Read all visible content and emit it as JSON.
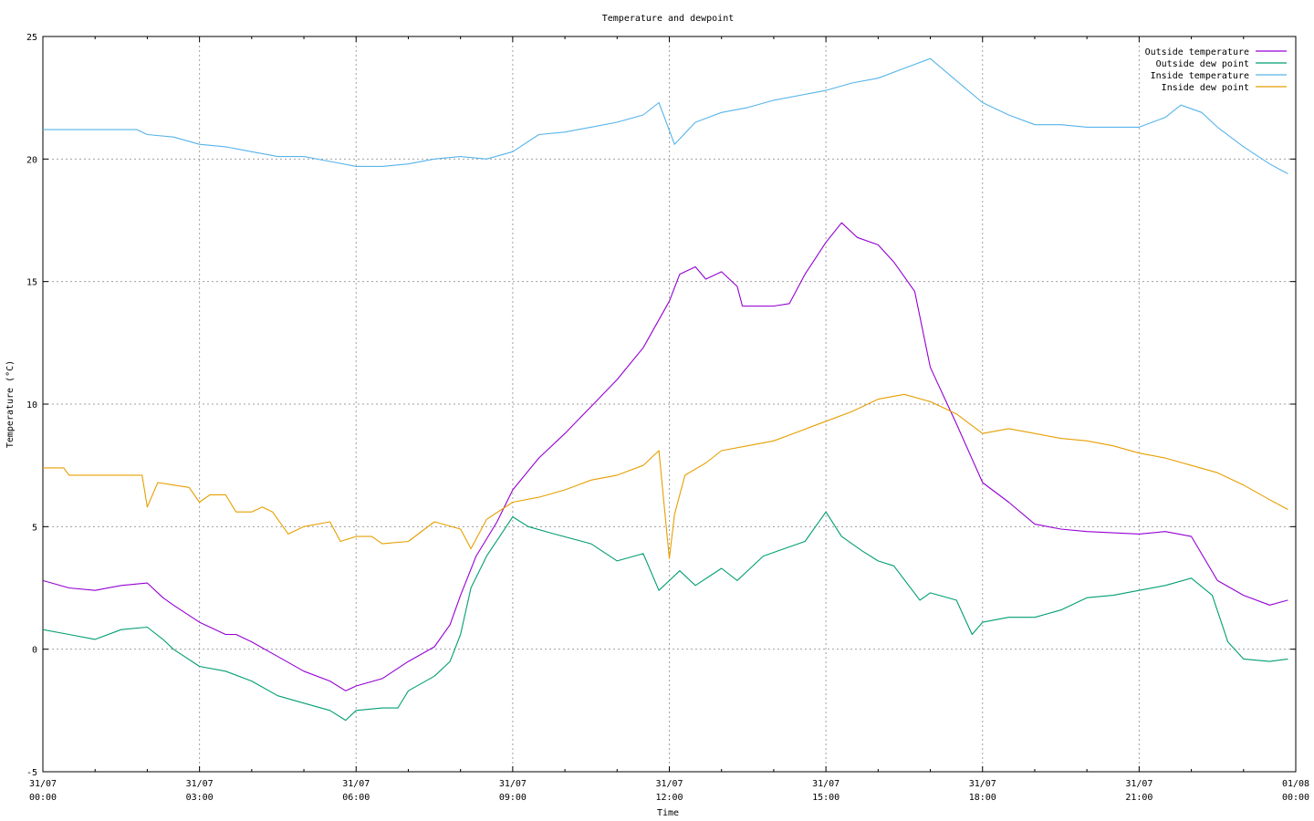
{
  "chart_data": {
    "type": "line",
    "title": "Temperature and dewpoint",
    "xlabel": "Time",
    "ylabel": "Temperature (°C)",
    "ylim": [
      -5,
      25
    ],
    "xlim_hours": [
      0,
      24
    ],
    "yticks": [
      -5,
      0,
      5,
      10,
      15,
      20,
      25
    ],
    "ytick_labels": [
      "-5",
      "0",
      "5",
      "10",
      "15",
      "20",
      "25"
    ],
    "xticks": [
      {
        "hour": 0,
        "date": "31/07",
        "time": "00:00"
      },
      {
        "hour": 3,
        "date": "31/07",
        "time": "03:00"
      },
      {
        "hour": 6,
        "date": "31/07",
        "time": "06:00"
      },
      {
        "hour": 9,
        "date": "31/07",
        "time": "09:00"
      },
      {
        "hour": 12,
        "date": "31/07",
        "time": "12:00"
      },
      {
        "hour": 15,
        "date": "31/07",
        "time": "15:00"
      },
      {
        "hour": 18,
        "date": "31/07",
        "time": "18:00"
      },
      {
        "hour": 21,
        "date": "31/07",
        "time": "21:00"
      },
      {
        "hour": 24,
        "date": "01/08",
        "time": "00:00"
      }
    ],
    "grid": true,
    "legend_position": "top-right",
    "series": [
      {
        "name": "Outside temperature",
        "color": "#9400d3",
        "points": [
          [
            0,
            2.8
          ],
          [
            0.5,
            2.5
          ],
          [
            1,
            2.4
          ],
          [
            1.5,
            2.6
          ],
          [
            2,
            2.7
          ],
          [
            2.3,
            2.1
          ],
          [
            2.5,
            1.8
          ],
          [
            3,
            1.1
          ],
          [
            3.5,
            0.6
          ],
          [
            3.7,
            0.6
          ],
          [
            4,
            0.3
          ],
          [
            4.5,
            -0.3
          ],
          [
            5,
            -0.9
          ],
          [
            5.5,
            -1.3
          ],
          [
            5.8,
            -1.7
          ],
          [
            6,
            -1.5
          ],
          [
            6.5,
            -1.2
          ],
          [
            7,
            -0.5
          ],
          [
            7.5,
            0.1
          ],
          [
            7.8,
            1.0
          ],
          [
            8,
            2.2
          ],
          [
            8.3,
            3.8
          ],
          [
            8.7,
            5.2
          ],
          [
            9,
            6.5
          ],
          [
            9.5,
            7.8
          ],
          [
            10,
            8.8
          ],
          [
            10.5,
            9.9
          ],
          [
            11,
            11.0
          ],
          [
            11.5,
            12.3
          ],
          [
            12,
            14.2
          ],
          [
            12.2,
            15.3
          ],
          [
            12.5,
            15.6
          ],
          [
            12.7,
            15.1
          ],
          [
            13,
            15.4
          ],
          [
            13.3,
            14.8
          ],
          [
            13.4,
            14.0
          ],
          [
            14,
            14.0
          ],
          [
            14.3,
            14.1
          ],
          [
            14.6,
            15.3
          ],
          [
            15,
            16.6
          ],
          [
            15.3,
            17.4
          ],
          [
            15.6,
            16.8
          ],
          [
            16,
            16.5
          ],
          [
            16.3,
            15.8
          ],
          [
            16.7,
            14.6
          ],
          [
            17,
            11.5
          ],
          [
            17.5,
            9.2
          ],
          [
            18,
            6.8
          ],
          [
            18.5,
            6.0
          ],
          [
            19,
            5.1
          ],
          [
            19.5,
            4.9
          ],
          [
            20,
            4.8
          ],
          [
            21,
            4.7
          ],
          [
            21.5,
            4.8
          ],
          [
            22,
            4.6
          ],
          [
            22.5,
            2.8
          ],
          [
            23,
            2.2
          ],
          [
            23.5,
            1.8
          ],
          [
            23.85,
            2.0
          ]
        ]
      },
      {
        "name": "Outside dew point",
        "color": "#009e73",
        "points": [
          [
            0,
            0.8
          ],
          [
            0.5,
            0.6
          ],
          [
            1,
            0.4
          ],
          [
            1.5,
            0.8
          ],
          [
            2,
            0.9
          ],
          [
            2.3,
            0.4
          ],
          [
            2.5,
            0.0
          ],
          [
            3,
            -0.7
          ],
          [
            3.5,
            -0.9
          ],
          [
            4,
            -1.3
          ],
          [
            4.5,
            -1.9
          ],
          [
            5,
            -2.2
          ],
          [
            5.5,
            -2.5
          ],
          [
            5.8,
            -2.9
          ],
          [
            6,
            -2.5
          ],
          [
            6.5,
            -2.4
          ],
          [
            6.8,
            -2.4
          ],
          [
            7,
            -1.7
          ],
          [
            7.5,
            -1.1
          ],
          [
            7.8,
            -0.5
          ],
          [
            8,
            0.6
          ],
          [
            8.2,
            2.5
          ],
          [
            8.5,
            3.8
          ],
          [
            9,
            5.4
          ],
          [
            9.3,
            5.0
          ],
          [
            9.8,
            4.7
          ],
          [
            10.5,
            4.3
          ],
          [
            11,
            3.6
          ],
          [
            11.5,
            3.9
          ],
          [
            11.8,
            2.4
          ],
          [
            12.2,
            3.2
          ],
          [
            12.5,
            2.6
          ],
          [
            13,
            3.3
          ],
          [
            13.3,
            2.8
          ],
          [
            13.8,
            3.8
          ],
          [
            14.2,
            4.1
          ],
          [
            14.6,
            4.4
          ],
          [
            15,
            5.6
          ],
          [
            15.3,
            4.6
          ],
          [
            15.7,
            4.0
          ],
          [
            16,
            3.6
          ],
          [
            16.3,
            3.4
          ],
          [
            16.8,
            2.0
          ],
          [
            17,
            2.3
          ],
          [
            17.5,
            2.0
          ],
          [
            17.8,
            0.6
          ],
          [
            18,
            1.1
          ],
          [
            18.5,
            1.3
          ],
          [
            19,
            1.3
          ],
          [
            19.5,
            1.6
          ],
          [
            20,
            2.1
          ],
          [
            20.5,
            2.2
          ],
          [
            21,
            2.4
          ],
          [
            21.5,
            2.6
          ],
          [
            22,
            2.9
          ],
          [
            22.4,
            2.2
          ],
          [
            22.7,
            0.3
          ],
          [
            23,
            -0.4
          ],
          [
            23.5,
            -0.5
          ],
          [
            23.85,
            -0.4
          ]
        ]
      },
      {
        "name": "Inside temperature",
        "color": "#56b4e9",
        "points": [
          [
            0,
            21.2
          ],
          [
            0.5,
            21.2
          ],
          [
            1,
            21.2
          ],
          [
            1.5,
            21.2
          ],
          [
            1.8,
            21.2
          ],
          [
            2,
            21.0
          ],
          [
            2.5,
            20.9
          ],
          [
            3,
            20.6
          ],
          [
            3.5,
            20.5
          ],
          [
            4,
            20.3
          ],
          [
            4.5,
            20.1
          ],
          [
            5,
            20.1
          ],
          [
            5.5,
            19.9
          ],
          [
            6,
            19.7
          ],
          [
            6.5,
            19.7
          ],
          [
            7,
            19.8
          ],
          [
            7.5,
            20.0
          ],
          [
            8,
            20.1
          ],
          [
            8.5,
            20.0
          ],
          [
            9,
            20.3
          ],
          [
            9.5,
            21.0
          ],
          [
            10,
            21.1
          ],
          [
            10.5,
            21.3
          ],
          [
            11,
            21.5
          ],
          [
            11.5,
            21.8
          ],
          [
            11.8,
            22.3
          ],
          [
            12.1,
            20.6
          ],
          [
            12.5,
            21.5
          ],
          [
            13,
            21.9
          ],
          [
            13.5,
            22.1
          ],
          [
            14,
            22.4
          ],
          [
            14.5,
            22.6
          ],
          [
            15,
            22.8
          ],
          [
            15.5,
            23.1
          ],
          [
            16,
            23.3
          ],
          [
            16.5,
            23.7
          ],
          [
            17,
            24.1
          ],
          [
            17.5,
            23.2
          ],
          [
            18,
            22.3
          ],
          [
            18.5,
            21.8
          ],
          [
            19,
            21.4
          ],
          [
            19.5,
            21.4
          ],
          [
            20,
            21.3
          ],
          [
            20.5,
            21.3
          ],
          [
            21,
            21.3
          ],
          [
            21.5,
            21.7
          ],
          [
            21.8,
            22.2
          ],
          [
            22.2,
            21.9
          ],
          [
            22.5,
            21.3
          ],
          [
            23,
            20.5
          ],
          [
            23.5,
            19.8
          ],
          [
            23.85,
            19.4
          ]
        ]
      },
      {
        "name": "Inside dew point",
        "color": "#e69f00",
        "points": [
          [
            0,
            7.4
          ],
          [
            0.4,
            7.4
          ],
          [
            0.5,
            7.1
          ],
          [
            1,
            7.1
          ],
          [
            1.5,
            7.1
          ],
          [
            1.9,
            7.1
          ],
          [
            2,
            5.8
          ],
          [
            2.2,
            6.8
          ],
          [
            2.5,
            6.7
          ],
          [
            2.8,
            6.6
          ],
          [
            3,
            6.0
          ],
          [
            3.2,
            6.3
          ],
          [
            3.5,
            6.3
          ],
          [
            3.7,
            5.6
          ],
          [
            4,
            5.6
          ],
          [
            4.2,
            5.8
          ],
          [
            4.4,
            5.6
          ],
          [
            4.7,
            4.7
          ],
          [
            5,
            5.0
          ],
          [
            5.5,
            5.2
          ],
          [
            5.7,
            4.4
          ],
          [
            6,
            4.6
          ],
          [
            6.3,
            4.6
          ],
          [
            6.5,
            4.3
          ],
          [
            7,
            4.4
          ],
          [
            7.5,
            5.2
          ],
          [
            8,
            4.9
          ],
          [
            8.2,
            4.1
          ],
          [
            8.5,
            5.3
          ],
          [
            9,
            6.0
          ],
          [
            9.5,
            6.2
          ],
          [
            10,
            6.5
          ],
          [
            10.5,
            6.9
          ],
          [
            11,
            7.1
          ],
          [
            11.5,
            7.5
          ],
          [
            11.8,
            8.1
          ],
          [
            12,
            3.7
          ],
          [
            12.1,
            5.5
          ],
          [
            12.3,
            7.1
          ],
          [
            12.7,
            7.6
          ],
          [
            13,
            8.1
          ],
          [
            13.5,
            8.3
          ],
          [
            14,
            8.5
          ],
          [
            14.5,
            8.9
          ],
          [
            15,
            9.3
          ],
          [
            15.5,
            9.7
          ],
          [
            16,
            10.2
          ],
          [
            16.5,
            10.4
          ],
          [
            17,
            10.1
          ],
          [
            17.5,
            9.6
          ],
          [
            18,
            8.8
          ],
          [
            18.5,
            9.0
          ],
          [
            19,
            8.8
          ],
          [
            19.5,
            8.6
          ],
          [
            20,
            8.5
          ],
          [
            20.5,
            8.3
          ],
          [
            21,
            8.0
          ],
          [
            21.5,
            7.8
          ],
          [
            22,
            7.5
          ],
          [
            22.5,
            7.2
          ],
          [
            23,
            6.7
          ],
          [
            23.5,
            6.1
          ],
          [
            23.85,
            5.7
          ]
        ]
      }
    ]
  }
}
